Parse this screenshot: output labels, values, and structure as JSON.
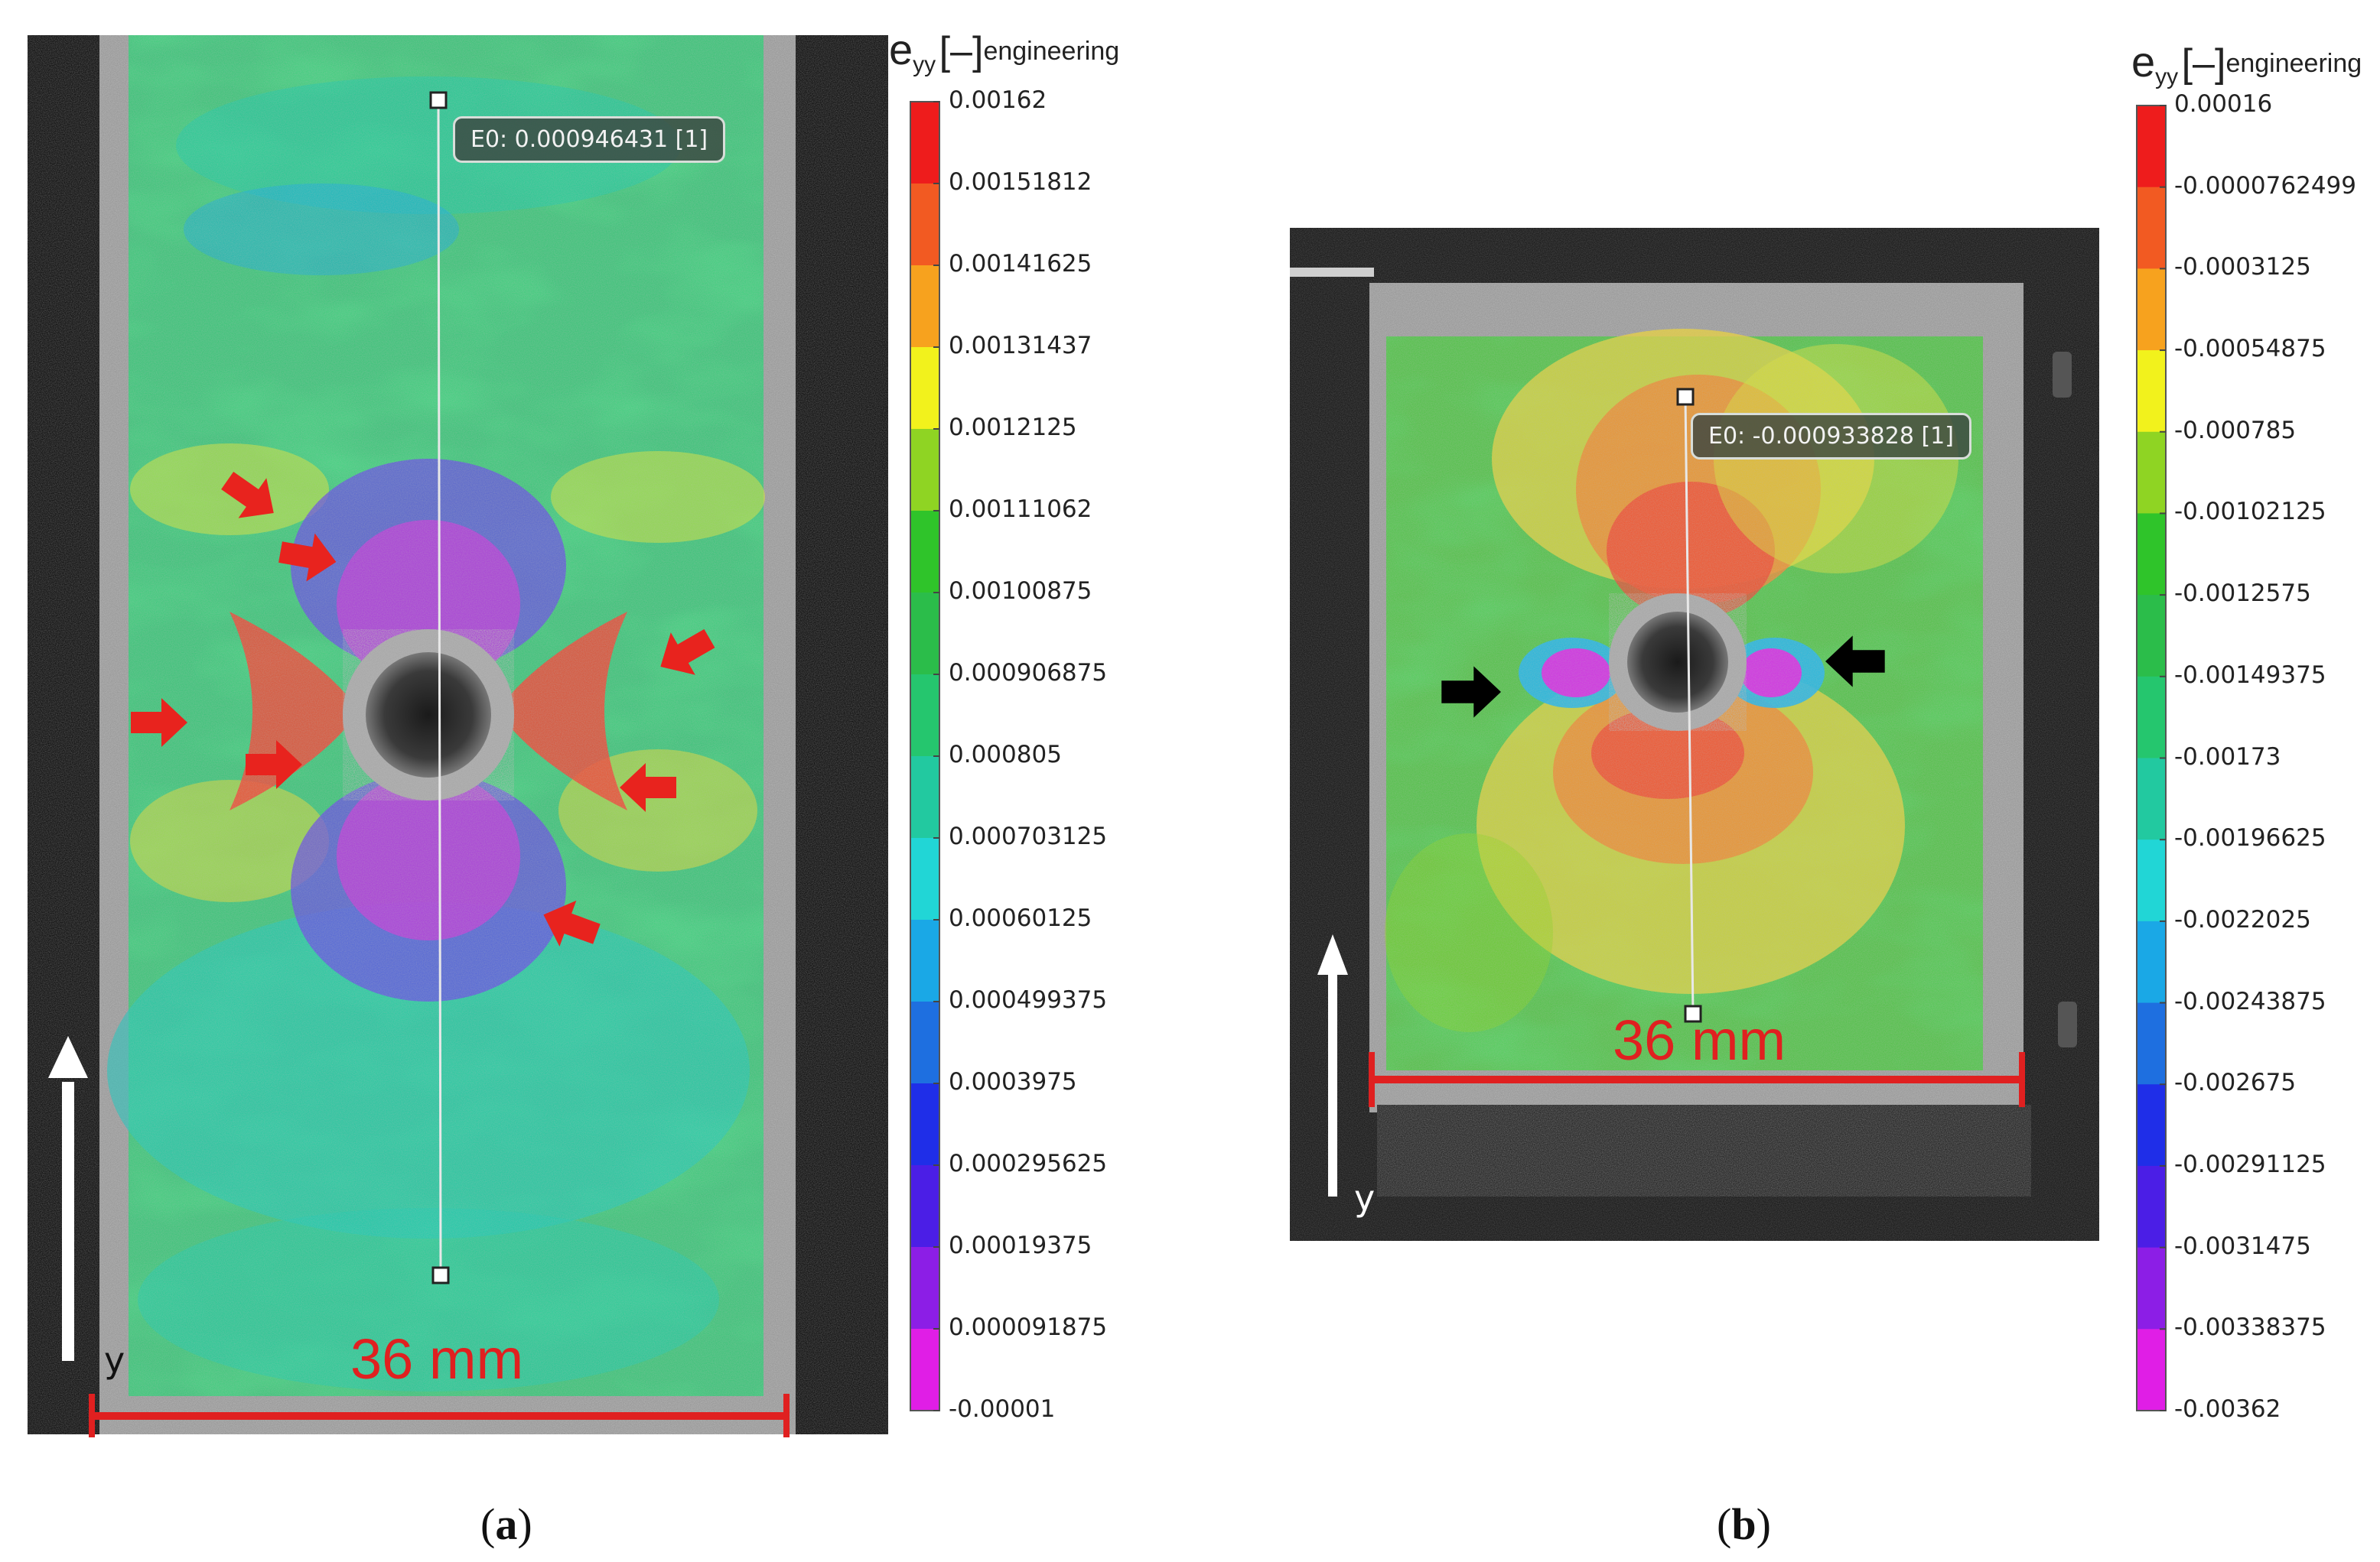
{
  "chart_data": [
    {
      "type": "heatmap",
      "panel": "(a)",
      "quantity": "eyy",
      "unit": "[–]",
      "unit_note": "engineering",
      "probe_label": "E0: 0.000946431 [1]",
      "width_label": "36 mm",
      "axis_label": "y",
      "colorbar_ticks": [
        "0.00162",
        "0.00151812",
        "0.00141625",
        "0.00131437",
        "0.0012125",
        "0.00111062",
        "0.00100875",
        "0.000906875",
        "0.000805",
        "0.000703125",
        "0.00060125",
        "0.000499375",
        "0.0003975",
        "0.000295625",
        "0.00019375",
        "0.000091875",
        "-0.00001"
      ],
      "arrow_color": "#e8231e",
      "arrow_count": 7
    },
    {
      "type": "heatmap",
      "panel": "(b)",
      "quantity": "eyy",
      "unit": "[–]",
      "unit_note": "engineering",
      "probe_label": "E0: -0.000933828 [1]",
      "width_label": "36 mm",
      "axis_label": "y",
      "colorbar_ticks": [
        "0.00016",
        "-0.0000762499",
        "-0.0003125",
        "-0.00054875",
        "-0.000785",
        "-0.00102125",
        "-0.0012575",
        "-0.00149375",
        "-0.00173",
        "-0.00196625",
        "-0.0022025",
        "-0.00243875",
        "-0.002675",
        "-0.00291125",
        "-0.0031475",
        "-0.00338375",
        "-0.00362"
      ],
      "arrow_color": "#000000",
      "arrow_count": 2
    }
  ],
  "colorbar_colors": [
    "#ee1c1c",
    "#f25a22",
    "#f7a21e",
    "#f2f21c",
    "#8fd423",
    "#2fc42a",
    "#2bbd4a",
    "#25c66e",
    "#22c9a0",
    "#21d6d6",
    "#1aa8e6",
    "#1e6fe0",
    "#1f2ee8",
    "#4b1ee6",
    "#8c1ee6",
    "#e01ee6"
  ],
  "captions": {
    "a": "a",
    "b": "b"
  }
}
